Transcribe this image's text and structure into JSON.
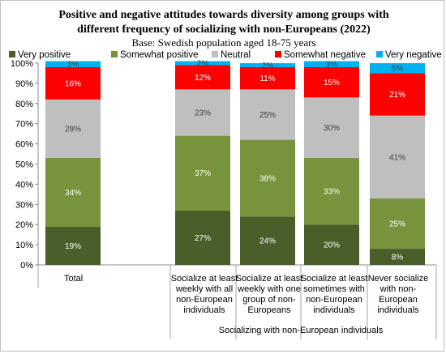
{
  "chart_data": {
    "type": "bar",
    "stacked": true,
    "title_lines": [
      "Positive and negative attitudes towards diversity among groups with",
      "different frequency of socializing with non-Europeans (2022)"
    ],
    "subtitle": "Base: Swedish population aged 18-75 years",
    "group_label": "Socializing with non-European individuals",
    "ylim": [
      0,
      100
    ],
    "y_ticks": [
      "0%",
      "10%",
      "20%",
      "30%",
      "40%",
      "50%",
      "60%",
      "70%",
      "80%",
      "90%",
      "100%"
    ],
    "legend_position": "top",
    "categories": [
      [
        "Total"
      ],
      [
        "Socialize at least",
        "weekly with all",
        "non-European",
        "individuals"
      ],
      [
        "Socialize at least",
        "weekly with one",
        "group of non-",
        "Europeans"
      ],
      [
        "Socialize at least",
        "sometimes with",
        "non-European",
        "individuals"
      ],
      [
        "Never socialize",
        "with non-",
        "European",
        "individuals"
      ]
    ],
    "series": [
      {
        "name": "Very positive",
        "color": "#4a5e2a",
        "label_color": "#ffffff",
        "values": [
          19,
          27,
          24,
          20,
          8
        ],
        "labels": [
          "19%",
          "27%",
          "24%",
          "20%",
          "8%"
        ]
      },
      {
        "name": "Somewhat positive",
        "color": "#77933c",
        "label_color": "#ffffff",
        "values": [
          34,
          37,
          38,
          33,
          25
        ],
        "labels": [
          "34%",
          "37%",
          "38%",
          "33%",
          "25%"
        ]
      },
      {
        "name": "Neutral",
        "color": "#bfbfbf",
        "label_color": "#404040",
        "values": [
          29,
          23,
          25,
          30,
          41
        ],
        "labels": [
          "29%",
          "23%",
          "25%",
          "30%",
          "41%"
        ]
      },
      {
        "name": "Somewhat negative",
        "color": "#ff0000",
        "label_color": "#ffffff",
        "values": [
          16,
          12,
          11,
          15,
          21
        ],
        "labels": [
          "16%",
          "12%",
          "11%",
          "15%",
          "21%"
        ]
      },
      {
        "name": "Very negative",
        "color": "#00b0f0",
        "label_color": "#404040",
        "values": [
          3,
          2,
          2,
          3,
          5
        ],
        "labels": [
          "3%",
          "2%",
          "2%",
          "3%",
          "5%"
        ]
      }
    ]
  }
}
